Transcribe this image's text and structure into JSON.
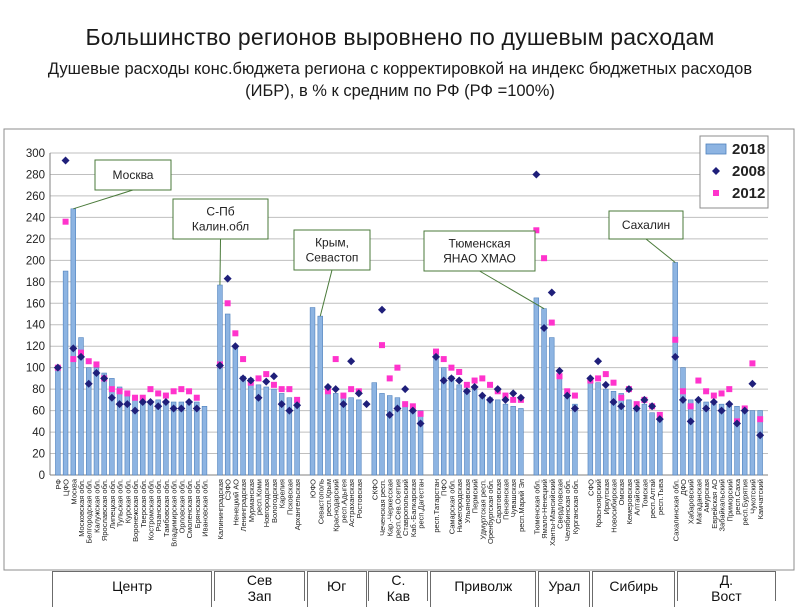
{
  "header": {
    "title": "Большинство регионов выровнено по душевым расходам",
    "subtitle": "Душевые расходы конс.бюджета региона с корректировкой на индекс бюджетных расходов (ИБР), в % к средним по РФ (РФ =100%)"
  },
  "colors": {
    "bar_fill": "#8db4e2",
    "bar_stroke": "#4f81bd",
    "s2008": "#1f1f7a",
    "s2012": "#ff33cc",
    "callout_stroke": "#4a7a3a",
    "grid": "#bfbfbf"
  },
  "chart_data": {
    "type": "bar",
    "ylim": [
      0,
      300
    ],
    "yticks": [
      0,
      20,
      40,
      60,
      80,
      100,
      120,
      140,
      160,
      180,
      200,
      220,
      240,
      260,
      280,
      300
    ],
    "grid": true,
    "legend_position": "top-right",
    "legend": [
      {
        "name": "2018",
        "kind": "bar"
      },
      {
        "name": "2008",
        "kind": "diamond"
      },
      {
        "name": "2012",
        "kind": "square"
      }
    ],
    "categories": [
      "РФ",
      "ЦФО",
      "Москва",
      "Московская обл.",
      "Белгородская обл.",
      "Калужская обл.",
      "Ярославская обл.",
      "Липецкая обл.",
      "Тульская обл.",
      "Курская обл.",
      "Воронежская обл.",
      "Тверская обл.",
      "Костромская обл.",
      "Рязанская обл.",
      "Тамбовская обл.",
      "Владимирская обл.",
      "Орловская обл.",
      "Смоленская обл.",
      "Брянская обл.",
      "Ивановская обл.",
      "",
      "Калининградская",
      "СЗФО",
      "Ненецкий АО",
      "Ленинградская",
      "Мурманская",
      "респ.Коми",
      "Новгородская",
      "Вологодская",
      "Карелия",
      "Псковская",
      "Архангельская",
      "",
      "ЮФО",
      "Севастополь",
      "респ.Крым",
      "Краснодарский",
      "респ.Адыгея",
      "Астраханская",
      "Ростовская",
      "",
      "СКФО",
      "Чеченская респ.",
      "Кар.-Черкесская",
      "респ.Сев.Осетия",
      "Ставропольский",
      "Каб.-Балкарская",
      "респ.Дагестан",
      "",
      "респ.Татарстан",
      "ПФО",
      "Самарская обл.",
      "Нижегородская",
      "Ульяновская",
      "Пермский",
      "Удмуртская респ.",
      "Оренбургская обл.",
      "Саратовская",
      "Пензенская",
      "Чувашская",
      "респ.Марий Эл",
      "",
      "Тюменская обл.",
      "Ямало-Ненецкий",
      "Ханты-Мансийский",
      "Свердловская",
      "Челябинская обл.",
      "Курганская обл.",
      "",
      "СФО",
      "Красноярский",
      "Иркутская",
      "Новосибирская",
      "Омская",
      "Кемеровская",
      "Алтайский",
      "Томская",
      "респ.Алтай",
      "респ.Тыва",
      "",
      "Сахалинская обл.",
      "ДФО",
      "Хабаровский",
      "Магаданская",
      "Амурская",
      "Еврейская АО",
      "Забайкальский",
      "Приморский",
      "респ.Саха",
      "респ.Бурятия",
      "Чукотский",
      "Камчатский"
    ],
    "series": [
      {
        "name": "2018",
        "values": [
          100,
          190,
          248,
          128,
          100,
          100,
          95,
          90,
          82,
          76,
          72,
          70,
          68,
          70,
          68,
          68,
          68,
          66,
          68,
          64,
          null,
          177,
          150,
          120,
          92,
          90,
          84,
          82,
          80,
          76,
          72,
          70,
          null,
          156,
          148,
          78,
          76,
          72,
          72,
          70,
          null,
          86,
          76,
          74,
          72,
          66,
          62,
          60,
          null,
          112,
          100,
          92,
          84,
          80,
          80,
          74,
          72,
          70,
          66,
          64,
          62,
          null,
          165,
          155,
          128,
          94,
          72,
          66,
          null,
          88,
          86,
          80,
          78,
          76,
          70,
          66,
          66,
          58,
          52,
          null,
          198,
          100,
          70,
          68,
          68,
          66,
          66,
          64,
          64,
          62,
          60,
          60
        ]
      },
      {
        "name": "2008",
        "values": [
          100,
          293,
          118,
          110,
          85,
          95,
          90,
          72,
          66,
          66,
          60,
          68,
          68,
          64,
          68,
          62,
          62,
          68,
          62,
          null,
          null,
          102,
          183,
          120,
          90,
          88,
          72,
          87,
          92,
          66,
          60,
          65,
          null,
          null,
          null,
          82,
          80,
          66,
          106,
          76,
          66,
          null,
          154,
          56,
          62,
          80,
          60,
          48,
          null,
          110,
          88,
          90,
          88,
          78,
          82,
          74,
          70,
          80,
          70,
          76,
          72,
          null,
          280,
          137,
          170,
          97,
          74,
          62,
          null,
          90,
          106,
          84,
          68,
          64,
          80,
          62,
          70,
          64,
          52,
          null,
          110,
          70,
          50,
          70,
          62,
          68,
          60,
          66,
          48,
          60,
          85,
          37
        ]
      },
      {
        "name": "2012",
        "values": [
          100,
          236,
          108,
          114,
          106,
          103,
          90,
          80,
          78,
          76,
          72,
          72,
          80,
          76,
          74,
          78,
          80,
          78,
          72,
          null,
          null,
          103,
          160,
          132,
          108,
          86,
          90,
          94,
          84,
          80,
          80,
          70,
          null,
          null,
          null,
          78,
          108,
          74,
          80,
          78,
          null,
          null,
          121,
          90,
          100,
          66,
          64,
          57,
          null,
          115,
          108,
          100,
          96,
          84,
          88,
          90,
          84,
          78,
          74,
          70,
          70,
          null,
          228,
          202,
          142,
          92,
          78,
          74,
          null,
          88,
          90,
          94,
          86,
          72,
          80,
          66,
          70,
          64,
          56,
          null,
          126,
          78,
          64,
          88,
          78,
          74,
          76,
          80,
          50,
          62,
          104,
          52
        ]
      }
    ],
    "annotations": [
      {
        "text": "Москва",
        "target": 2
      },
      {
        "text": "С-Пб\nКалин.обл",
        "target": 21
      },
      {
        "text": "Крым,\nСевастоп",
        "target": 34
      },
      {
        "text": "Тюменская\nЯНАО ХМАО",
        "target": 63
      },
      {
        "text": "Сахалин",
        "target": 80
      }
    ],
    "regions": [
      {
        "label": "Центр",
        "first": 0,
        "last": 19
      },
      {
        "label": "Сев Зап",
        "first": 21,
        "last": 31
      },
      {
        "label": "Юг",
        "first": 33,
        "last": 39
      },
      {
        "label": "С. Кав",
        "first": 41,
        "last": 47
      },
      {
        "label": "Приволж",
        "first": 49,
        "last": 61
      },
      {
        "label": "Урал",
        "first": 63,
        "last": 68
      },
      {
        "label": "Сибирь",
        "first": 70,
        "last": 79
      },
      {
        "label": "Д. Вост",
        "first": 81,
        "last": 92
      }
    ]
  }
}
